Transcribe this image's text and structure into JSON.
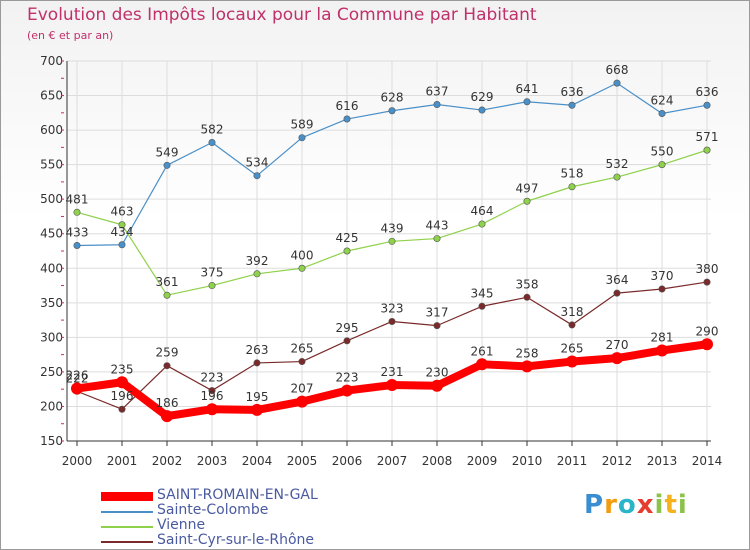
{
  "header": {
    "title": "Evolution des Impôts locaux pour la Commune par Habitant",
    "subtitle": "(en € et par an)"
  },
  "logo": {
    "text": "Proxiti"
  },
  "colors": {
    "title": "#c0306a",
    "axis": "#333333",
    "grid": "#dddddd",
    "tick_marks": "#c0306a"
  },
  "chart_data": {
    "type": "line",
    "x": [
      "2000",
      "2001",
      "2002",
      "2003",
      "2004",
      "2005",
      "2006",
      "2007",
      "2008",
      "2009",
      "2010",
      "2011",
      "2012",
      "2013",
      "2014"
    ],
    "ylim": [
      150,
      700
    ],
    "yticks": [
      150,
      200,
      250,
      300,
      350,
      400,
      450,
      500,
      550,
      600,
      650,
      700
    ],
    "grid": true,
    "legend_position": "bottom-left",
    "series": [
      {
        "name": "SAINT-ROMAIN-EN-GAL",
        "color": "#ff0000",
        "label_color": "#333333",
        "values": [
          226,
          235,
          186,
          196,
          195,
          207,
          223,
          231,
          230,
          261,
          258,
          265,
          270,
          281,
          290
        ],
        "thick": true
      },
      {
        "name": "Sainte-Colombe",
        "color": "#4a90c8",
        "label_color": "#333333",
        "values": [
          433,
          434,
          549,
          582,
          534,
          589,
          616,
          628,
          637,
          629,
          641,
          636,
          668,
          624,
          636
        ],
        "thick": false
      },
      {
        "name": "Vienne",
        "color": "#8ed14a",
        "label_color": "#333333",
        "values": [
          481,
          463,
          361,
          375,
          392,
          400,
          425,
          439,
          443,
          464,
          497,
          518,
          532,
          550,
          571
        ],
        "thick": false
      },
      {
        "name": "Saint-Cyr-sur-le-Rhône",
        "color": "#7a2a2a",
        "label_color": "#333333",
        "values": [
          222,
          196,
          259,
          223,
          263,
          265,
          295,
          323,
          317,
          345,
          358,
          318,
          364,
          370,
          380
        ],
        "thick": false
      }
    ]
  },
  "legend": [
    {
      "label": "SAINT-ROMAIN-EN-GAL",
      "color": "#ff0000",
      "text_color": "#4a5aa0"
    },
    {
      "label": "Sainte-Colombe",
      "color": "#4a90c8",
      "text_color": "#4a5aa0"
    },
    {
      "label": "Vienne",
      "color": "#8ed14a",
      "text_color": "#4a5aa0"
    },
    {
      "label": "Saint-Cyr-sur-le-Rhône",
      "color": "#7a2a2a",
      "text_color": "#4a5aa0"
    }
  ]
}
